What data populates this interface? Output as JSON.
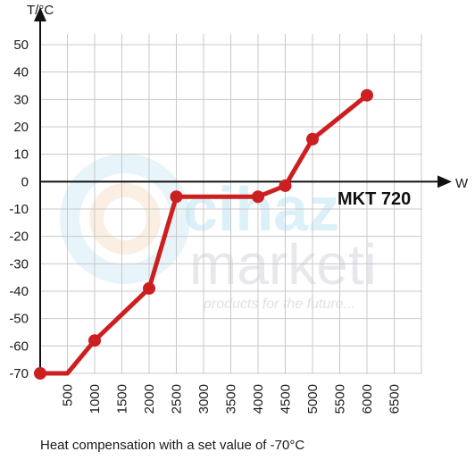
{
  "watermark": {
    "brand_top": "cihaz",
    "brand_bottom": "marketi",
    "tagline": "products for the future..."
  },
  "caption": "Heat compensation with a set value of -70°C",
  "chart_data": {
    "type": "line",
    "title": "",
    "xlabel": "W",
    "ylabel": "T/°C",
    "annotation": "MKT 720",
    "xlim": [
      0,
      7000
    ],
    "ylim": [
      -70,
      50
    ],
    "x_ticks": [
      500,
      1000,
      1500,
      2000,
      2500,
      3000,
      3500,
      4000,
      4500,
      5000,
      5500,
      6000,
      6500
    ],
    "y_ticks": [
      50,
      40,
      30,
      20,
      10,
      0,
      -10,
      -20,
      -30,
      -40,
      -50,
      -60,
      -70
    ],
    "grid": true,
    "series": [
      {
        "color": "#cc1f1f",
        "points": [
          {
            "x": 0,
            "y": -70,
            "marker": true
          },
          {
            "x": 500,
            "y": -70,
            "marker": false
          },
          {
            "x": 1000,
            "y": -58,
            "marker": true
          },
          {
            "x": 2000,
            "y": -39,
            "marker": true
          },
          {
            "x": 2500,
            "y": -5.5,
            "marker": true
          },
          {
            "x": 4000,
            "y": -5.5,
            "marker": true
          },
          {
            "x": 4500,
            "y": -1.5,
            "marker": true
          },
          {
            "x": 5000,
            "y": 15.5,
            "marker": true
          },
          {
            "x": 6000,
            "y": 31.5,
            "marker": true
          }
        ]
      }
    ]
  }
}
